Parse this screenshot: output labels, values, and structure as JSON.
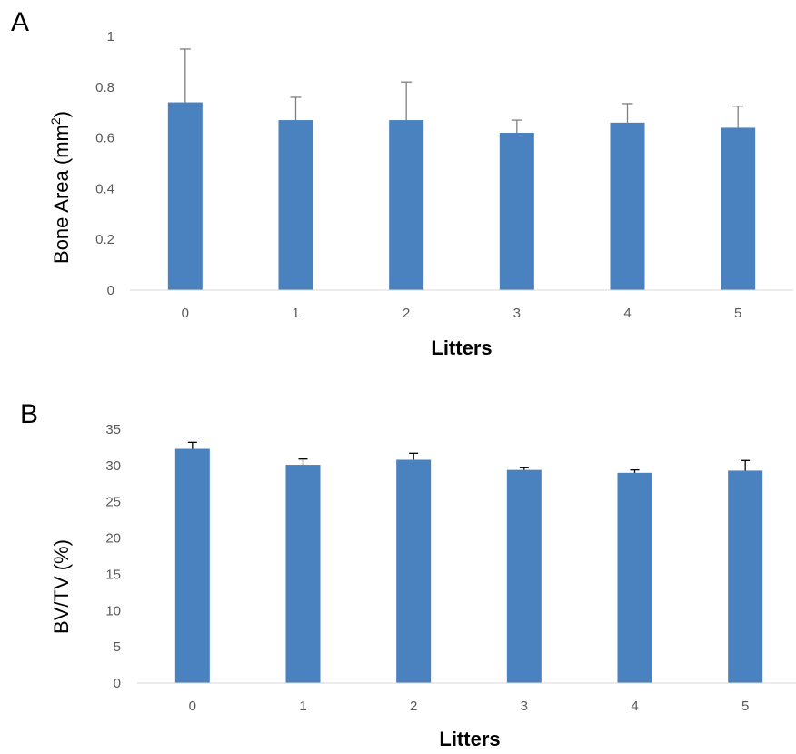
{
  "chart_data": [
    {
      "panel_label": "A",
      "type": "bar",
      "categories": [
        "0",
        "1",
        "2",
        "3",
        "4",
        "5"
      ],
      "values": [
        0.74,
        0.67,
        0.67,
        0.62,
        0.66,
        0.64
      ],
      "error": [
        0.21,
        0.09,
        0.15,
        0.05,
        0.075,
        0.085
      ],
      "xlabel": "Litters",
      "ylabel_main": "Bone Area (mm",
      "ylabel_sup": "2",
      "ylabel_close": ")",
      "ylim": [
        0,
        1
      ],
      "yticks": [
        "0",
        "0.2",
        "0.4",
        "0.6",
        "0.8",
        "1"
      ],
      "ytick_values": [
        0,
        0.2,
        0.4,
        0.6,
        0.8,
        1
      ],
      "grid": false,
      "legend": "none",
      "bar_color": "#4a81bf",
      "error_color": "#7f7f7f"
    },
    {
      "panel_label": "B",
      "type": "bar",
      "categories": [
        "0",
        "1",
        "2",
        "3",
        "4",
        "5"
      ],
      "values": [
        32.3,
        30.1,
        30.8,
        29.4,
        29.0,
        29.3
      ],
      "error": [
        0.9,
        0.8,
        0.9,
        0.3,
        0.4,
        1.4
      ],
      "xlabel": "Litters",
      "ylabel": "BV/TV (%)",
      "ylim": [
        0,
        35
      ],
      "yticks": [
        "0",
        "5",
        "10",
        "15",
        "20",
        "25",
        "30",
        "35"
      ],
      "ytick_values": [
        0,
        5,
        10,
        15,
        20,
        25,
        30,
        35
      ],
      "grid": false,
      "legend": "none",
      "bar_color": "#4a81bf",
      "error_color": "#000000"
    }
  ]
}
